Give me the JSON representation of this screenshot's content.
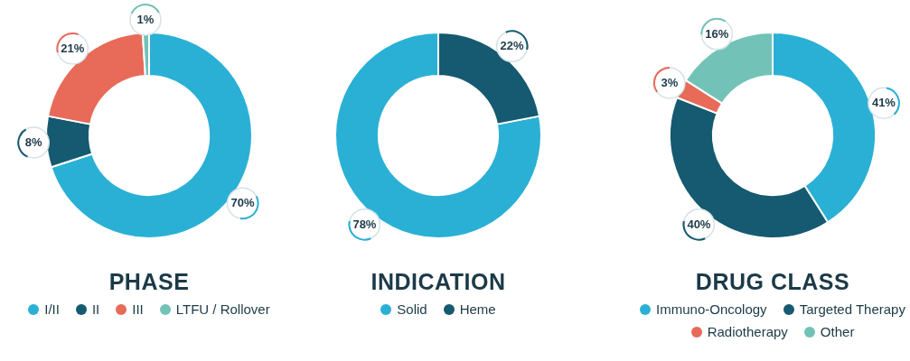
{
  "chart_data": [
    {
      "type": "doughnut",
      "title": "PHASE",
      "categories": [
        "I/II",
        "II",
        "III",
        "LTFU / Rollover"
      ],
      "values": [
        70,
        8,
        21,
        1
      ],
      "value_labels": [
        "70%",
        "8%",
        "21%",
        "1%"
      ],
      "colors": [
        "#2ab0d5",
        "#155a70",
        "#e86a58",
        "#72c2b8"
      ],
      "data_labels": true,
      "legend": "bottom"
    },
    {
      "type": "doughnut",
      "title": "INDICATION",
      "categories": [
        "Solid",
        "Heme"
      ],
      "values": [
        78,
        22
      ],
      "value_labels": [
        "78%",
        "22%"
      ],
      "colors": [
        "#2ab0d5",
        "#155a70"
      ],
      "data_labels": true,
      "legend": "bottom"
    },
    {
      "type": "doughnut",
      "title": "DRUG CLASS",
      "categories": [
        "Immuno-Oncology",
        "Targeted Therapy",
        "Radiotherapy",
        "Other"
      ],
      "values": [
        41,
        40,
        3,
        16
      ],
      "value_labels": [
        "41%",
        "40%",
        "3%",
        "16%"
      ],
      "colors": [
        "#2ab0d5",
        "#155a70",
        "#e86a58",
        "#72c2b8"
      ],
      "data_labels": true,
      "legend": "bottom"
    }
  ]
}
